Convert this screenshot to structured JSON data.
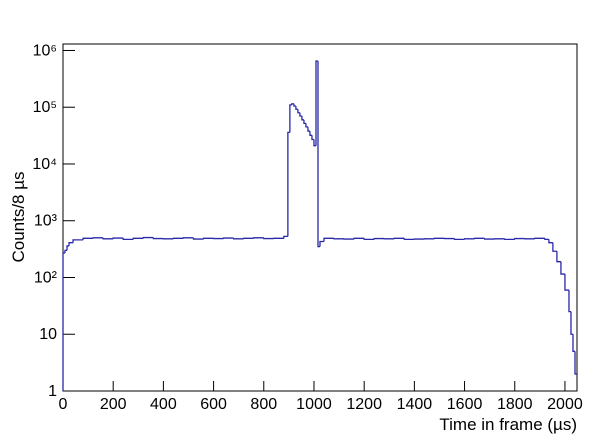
{
  "chart_data": {
    "type": "histogram",
    "x_label": "Time in frame (µs)",
    "y_label": "Counts/8 µs",
    "color": "#2828a8",
    "log_y": true,
    "bins": [
      0,
      8,
      16,
      24,
      40,
      80,
      120,
      160,
      200,
      240,
      280,
      320,
      360,
      400,
      440,
      480,
      520,
      560,
      600,
      640,
      680,
      720,
      760,
      800,
      840,
      880,
      896,
      904,
      912,
      920,
      928,
      936,
      944,
      952,
      960,
      968,
      976,
      984,
      992,
      1000,
      1008,
      1016,
      1024,
      1040,
      1080,
      1120,
      1160,
      1200,
      1240,
      1280,
      1320,
      1360,
      1400,
      1440,
      1480,
      1520,
      1560,
      1600,
      1640,
      1680,
      1720,
      1760,
      1800,
      1840,
      1880,
      1920,
      1936,
      1952,
      1968,
      1984,
      2000,
      2016,
      2024,
      2032,
      2040,
      2048
    ],
    "values": [
      270,
      300,
      360,
      410,
      460,
      490,
      500,
      480,
      495,
      470,
      490,
      505,
      485,
      480,
      490,
      500,
      475,
      490,
      485,
      495,
      480,
      490,
      500,
      485,
      490,
      530,
      36000,
      110000,
      115000,
      105000,
      92000,
      80000,
      70000,
      60000,
      52000,
      45000,
      38000,
      32000,
      27000,
      21000,
      650000,
      350,
      430,
      490,
      480,
      475,
      490,
      470,
      485,
      480,
      490,
      470,
      475,
      480,
      490,
      485,
      470,
      480,
      490,
      475,
      480,
      470,
      485,
      480,
      490,
      470,
      410,
      290,
      190,
      115,
      60,
      25,
      10,
      5,
      2
    ],
    "xlim": [
      0,
      2048
    ],
    "xticks": [
      0,
      200,
      400,
      600,
      800,
      1000,
      1200,
      1400,
      1600,
      1800,
      2000
    ],
    "ylim": [
      1,
      1300000
    ],
    "yticks": [
      1,
      10,
      {
        "value": 100,
        "label": "10²"
      },
      {
        "value": 1000,
        "label": "10³"
      },
      {
        "value": 10000,
        "label": "10⁴"
      },
      {
        "value": 100000,
        "label": "10⁵"
      },
      {
        "value": 1000000,
        "label": "10⁶"
      }
    ]
  }
}
